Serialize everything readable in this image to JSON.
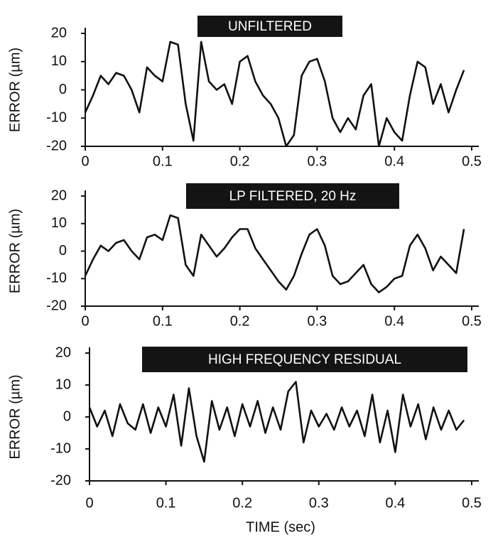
{
  "chart_data": [
    {
      "type": "line",
      "title": "UNFILTERED",
      "ylabel": "ERROR (µm)",
      "color": "#111111",
      "xlim": [
        0,
        0.5
      ],
      "xticks": [
        0,
        0.1,
        0.2,
        0.3,
        0.4,
        0.5
      ],
      "ylim": [
        -20,
        20
      ],
      "yticks": [
        -20,
        -10,
        0,
        10,
        20
      ],
      "x": [
        0,
        0.01,
        0.02,
        0.03,
        0.04,
        0.05,
        0.06,
        0.07,
        0.08,
        0.09,
        0.1,
        0.11,
        0.12,
        0.13,
        0.14,
        0.15,
        0.16,
        0.17,
        0.18,
        0.19,
        0.2,
        0.21,
        0.22,
        0.23,
        0.24,
        0.25,
        0.26,
        0.27,
        0.28,
        0.29,
        0.3,
        0.31,
        0.32,
        0.33,
        0.34,
        0.35,
        0.36,
        0.37,
        0.38,
        0.39,
        0.4,
        0.41,
        0.42,
        0.43,
        0.44,
        0.45,
        0.46,
        0.47,
        0.48,
        0.49
      ],
      "values": [
        -8,
        -2,
        5,
        2,
        6,
        5,
        0,
        -8,
        8,
        5,
        3,
        17,
        16,
        -5,
        -18,
        17,
        3,
        0,
        2,
        -5,
        10,
        12,
        3,
        -2,
        -5,
        -10,
        -20,
        -16,
        5,
        10,
        11,
        3,
        -10,
        -15,
        -10,
        -14,
        -2,
        2,
        -20,
        -10,
        -15,
        -18,
        -2,
        10,
        8,
        -5,
        2,
        -8,
        0,
        7
      ]
    },
    {
      "type": "line",
      "title": "LP FILTERED, 20 Hz",
      "ylabel": "ERROR (µm)",
      "color": "#111111",
      "xlim": [
        0,
        0.5
      ],
      "xticks": [
        0,
        0.1,
        0.2,
        0.3,
        0.4,
        0.5
      ],
      "ylim": [
        -20,
        20
      ],
      "yticks": [
        -20,
        -10,
        0,
        10,
        20
      ],
      "x": [
        0,
        0.01,
        0.02,
        0.03,
        0.04,
        0.05,
        0.06,
        0.07,
        0.08,
        0.09,
        0.1,
        0.11,
        0.12,
        0.13,
        0.14,
        0.15,
        0.16,
        0.17,
        0.18,
        0.19,
        0.2,
        0.21,
        0.22,
        0.23,
        0.24,
        0.25,
        0.26,
        0.27,
        0.28,
        0.29,
        0.3,
        0.31,
        0.32,
        0.33,
        0.34,
        0.35,
        0.36,
        0.37,
        0.38,
        0.39,
        0.4,
        0.41,
        0.42,
        0.43,
        0.44,
        0.45,
        0.46,
        0.47,
        0.48,
        0.49
      ],
      "values": [
        -9,
        -3,
        2,
        0,
        3,
        4,
        0,
        -3,
        5,
        6,
        4,
        13,
        12,
        -5,
        -9,
        6,
        2,
        -2,
        1,
        5,
        8,
        8,
        1,
        -3,
        -7,
        -11,
        -14,
        -9,
        -1,
        6,
        8,
        2,
        -9,
        -12,
        -11,
        -8,
        -5,
        -12,
        -15,
        -13,
        -10,
        -9,
        2,
        6,
        1,
        -7,
        -2,
        -5,
        -8,
        8
      ]
    },
    {
      "type": "line",
      "title": "HIGH FREQUENCY RESIDUAL",
      "ylabel": "ERROR (µm)",
      "xlabel": "TIME (sec)",
      "color": "#111111",
      "xlim": [
        0,
        0.5
      ],
      "xticks": [
        0,
        0.1,
        0.2,
        0.3,
        0.4,
        0.5
      ],
      "ylim": [
        -20,
        20
      ],
      "yticks": [
        -20,
        -10,
        0,
        10,
        20
      ],
      "x": [
        0,
        0.01,
        0.02,
        0.03,
        0.04,
        0.05,
        0.06,
        0.07,
        0.08,
        0.09,
        0.1,
        0.11,
        0.12,
        0.13,
        0.14,
        0.15,
        0.16,
        0.17,
        0.18,
        0.19,
        0.2,
        0.21,
        0.22,
        0.23,
        0.24,
        0.25,
        0.26,
        0.27,
        0.28,
        0.29,
        0.3,
        0.31,
        0.32,
        0.33,
        0.34,
        0.35,
        0.36,
        0.37,
        0.38,
        0.39,
        0.4,
        0.41,
        0.42,
        0.43,
        0.44,
        0.45,
        0.46,
        0.47,
        0.48,
        0.49
      ],
      "values": [
        3,
        -3,
        2,
        -6,
        4,
        -2,
        -4,
        4,
        -5,
        3,
        -3,
        7,
        -9,
        9,
        -6,
        -14,
        5,
        -4,
        3,
        -6,
        4,
        -3,
        5,
        -5,
        3,
        -4,
        8,
        11,
        -8,
        2,
        -3,
        1,
        -4,
        3,
        -3,
        2,
        -6,
        7,
        -8,
        2,
        -11,
        7,
        -3,
        4,
        -7,
        3,
        -4,
        2,
        -4,
        -1
      ]
    }
  ]
}
